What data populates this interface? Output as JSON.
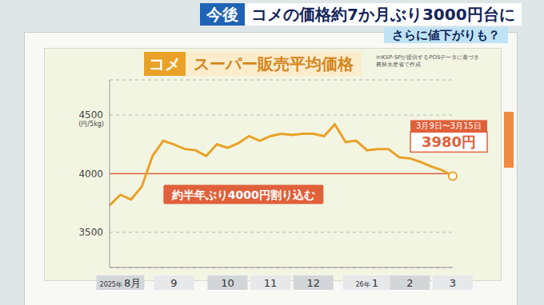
{
  "header": {
    "tag": "今後",
    "headline": "コメの価格約7か月ぶり3000円台に",
    "subheadline": "さらに値下がりも？"
  },
  "chart_data": {
    "type": "line",
    "title_tag": "コメ",
    "title": "スーパー販売平均価格",
    "source": [
      "㈱KSP-SPが提供するPOSデータに基づき",
      "農林水産省で作成"
    ],
    "ylabel": "(円/5kg)",
    "categories": [
      null,
      "2025年8月",
      null,
      null,
      null,
      null,
      "9",
      null,
      null,
      null,
      null,
      "10",
      null,
      null,
      null,
      "11",
      null,
      null,
      null,
      "12",
      null,
      null,
      null,
      null,
      "26年1",
      null,
      null,
      null,
      "2",
      null,
      null,
      null,
      "3"
    ],
    "values": [
      3730,
      3820,
      3780,
      3890,
      4150,
      4280,
      4250,
      4210,
      4200,
      4150,
      4250,
      4220,
      4260,
      4320,
      4280,
      4320,
      4340,
      4330,
      4340,
      4340,
      4320,
      4420,
      4270,
      4280,
      4200,
      4210,
      4210,
      4140,
      4130,
      4100,
      4060,
      4030,
      3980
    ],
    "color": "#e9a227",
    "marker": "none",
    "ylim": [
      3200,
      4800
    ],
    "yticks": [
      3500,
      4000,
      4500
    ],
    "grid": true,
    "reference_line": {
      "value": 4000,
      "label": "約半年ぶり4000円割り込む"
    },
    "callout": {
      "period": "3月9日〜3月15日",
      "label": "3980円",
      "value": 3980
    }
  }
}
